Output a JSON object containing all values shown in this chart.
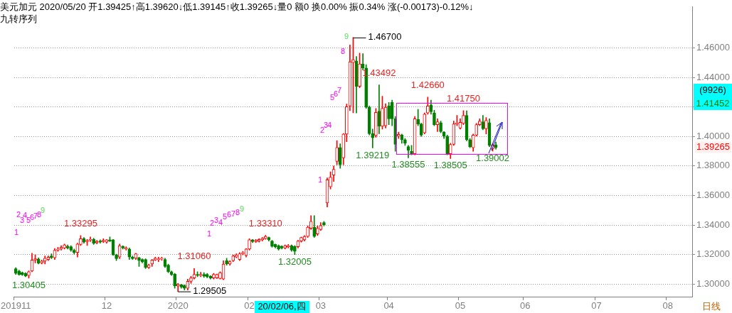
{
  "chart_data": {
    "type": "candlestick",
    "title": "美元加元 2020/05/20 开1.39425↑高1.39620↓低1.39145↑收1.39265↓量0 额0 换0.00% 振0.34% 涨(-0.00173)-0.12%↓",
    "subtitle": "九转序列",
    "categories": [
      "201911",
      null,
      null,
      null,
      null,
      null,
      null,
      null,
      null,
      null,
      null,
      null,
      null,
      null,
      null,
      null,
      null,
      null,
      null,
      null,
      null,
      null,
      null,
      null,
      null,
      null,
      null,
      null,
      "12",
      null,
      null,
      null,
      null,
      null,
      null,
      null,
      null,
      null,
      null,
      null,
      null,
      null,
      null,
      null,
      null,
      null,
      null,
      null,
      null,
      null,
      "2020",
      null,
      null,
      null,
      null,
      null,
      null,
      null,
      null,
      null,
      null,
      null,
      null,
      null,
      null,
      null,
      null,
      null,
      null,
      null,
      null,
      null,
      "02",
      null,
      null,
      null,
      null,
      null,
      null,
      null,
      null,
      null,
      null,
      null,
      null,
      null,
      null,
      null,
      null,
      null,
      null,
      null,
      null,
      null,
      "03",
      null,
      null,
      null,
      null,
      null,
      null,
      null,
      null,
      null,
      null,
      null,
      null,
      null,
      null,
      null,
      null,
      null,
      null,
      null,
      null,
      "04",
      null,
      null,
      null,
      null,
      null,
      null,
      null,
      null,
      null,
      null,
      null,
      null,
      null,
      null,
      null,
      null,
      null,
      null,
      null,
      null,
      null,
      "05",
      null,
      null,
      null,
      null,
      null,
      null,
      null,
      null,
      null,
      null,
      null,
      null,
      null,
      null,
      null,
      null,
      null,
      null,
      null,
      "06",
      null,
      null,
      null,
      null,
      null,
      null,
      null,
      null,
      null,
      null,
      null,
      null,
      null,
      null,
      null,
      null,
      null,
      null,
      null,
      null,
      null,
      "07",
      null,
      null,
      null,
      null,
      null,
      null,
      null,
      null,
      null,
      null,
      null,
      null,
      null,
      null,
      null,
      null,
      null,
      null,
      null,
      null,
      null,
      "08",
      null,
      null,
      null,
      null,
      null,
      null,
      null
    ],
    "ohlc": [
      [
        1.3105,
        1.3112,
        1.3066,
        1.3073
      ],
      [
        1.3089,
        1.3095,
        1.306,
        1.3066
      ],
      [
        1.3078,
        1.3083,
        1.3058,
        1.3063
      ],
      [
        1.3073,
        1.3078,
        1.305,
        1.3055
      ],
      [
        1.3058,
        1.309,
        1.30405,
        1.3084
      ],
      [
        1.3089,
        1.3209,
        1.3084,
        1.3163
      ],
      [
        1.3163,
        1.3198,
        1.3144,
        1.3172
      ],
      [
        1.317,
        1.3178,
        1.3136,
        1.3141
      ],
      [
        1.3144,
        1.3163,
        1.3136,
        1.3156
      ],
      [
        1.3156,
        1.3191,
        1.3136,
        1.3175
      ],
      [
        1.3167,
        1.3191,
        1.3159,
        1.3183
      ],
      [
        1.3191,
        1.3206,
        1.3172,
        1.3178
      ],
      [
        1.3178,
        1.3241,
        1.3167,
        1.323
      ],
      [
        1.323,
        1.325,
        1.3222,
        1.3238
      ],
      [
        1.3238,
        1.3261,
        1.323,
        1.325
      ],
      [
        1.3245,
        1.3272,
        1.3238,
        1.3266
      ],
      [
        1.3256,
        1.3266,
        1.3238,
        1.3245
      ],
      [
        1.3253,
        1.3261,
        1.3222,
        1.323
      ],
      [
        1.323,
        1.3238,
        1.3203,
        1.3214
      ],
      [
        1.3214,
        1.3277,
        1.3183,
        1.3272
      ],
      [
        1.3269,
        1.33295,
        1.3261,
        1.3308
      ],
      [
        1.3308,
        1.3316,
        1.3277,
        1.3284
      ],
      [
        1.3288,
        1.3303,
        1.3261,
        1.3297
      ],
      [
        1.3297,
        1.3319,
        1.3288,
        1.3303
      ],
      [
        1.3303,
        1.3311,
        1.3269,
        1.3277
      ],
      [
        1.3281,
        1.3297,
        1.3272,
        1.3289
      ],
      [
        1.3292,
        1.33,
        1.3277,
        1.3284
      ],
      [
        1.3288,
        1.3308,
        1.3281,
        1.3297
      ],
      [
        1.3284,
        1.3303,
        1.3277,
        1.33
      ],
      [
        1.33,
        1.3319,
        1.3288,
        1.3292
      ],
      [
        1.33,
        1.3303,
        1.3194,
        1.3198
      ],
      [
        1.3198,
        1.3203,
        1.3159,
        1.3172
      ],
      [
        1.3183,
        1.3272,
        1.3172,
        1.3261
      ],
      [
        1.3256,
        1.3261,
        1.3238,
        1.3245
      ],
      [
        1.3238,
        1.3253,
        1.323,
        1.3245
      ],
      [
        1.3238,
        1.3245,
        1.3167,
        1.3183
      ],
      [
        1.3183,
        1.3191,
        1.3167,
        1.3172
      ],
      [
        1.3175,
        1.3209,
        1.3167,
        1.3206
      ],
      [
        1.3178,
        1.3183,
        1.312,
        1.3159
      ],
      [
        1.3167,
        1.3172,
        1.3144,
        1.3152
      ],
      [
        1.3167,
        1.3172,
        1.3105,
        1.3113
      ],
      [
        1.3113,
        1.3136,
        1.3105,
        1.3128
      ],
      [
        1.3136,
        1.3167,
        1.312,
        1.3163
      ],
      [
        1.3163,
        1.3183,
        1.3159,
        1.3175
      ],
      [
        1.3167,
        1.3183,
        1.3152,
        1.3172
      ],
      [
        1.317,
        1.3183,
        1.316,
        1.3175
      ],
      [
        1.3167,
        1.3175,
        1.3113,
        1.312
      ],
      [
        1.3128,
        1.3136,
        1.3078,
        1.3084
      ],
      [
        1.3084,
        1.3089,
        1.3058,
        1.3066
      ],
      [
        1.3069,
        1.3073,
        1.2972,
        1.2988
      ],
      [
        1.2988,
        1.3005,
        1.29505,
        1.3
      ],
      [
        1.2995,
        1.3,
        1.2972,
        1.298
      ],
      [
        1.2991,
        1.2995,
        1.296,
        1.2972
      ],
      [
        1.2972,
        1.3034,
        1.296,
        1.3019
      ],
      [
        1.3019,
        1.3053,
        1.3005,
        1.3042
      ],
      [
        1.3042,
        1.3106,
        1.3034,
        1.3066
      ],
      [
        1.3066,
        1.3084,
        1.305,
        1.3058
      ],
      [
        1.3058,
        1.308,
        1.305,
        1.3066
      ],
      [
        1.3066,
        1.3078,
        1.3045,
        1.3053
      ],
      [
        1.3066,
        1.3073,
        1.3042,
        1.305
      ],
      [
        1.3053,
        1.3058,
        1.3034,
        1.3042
      ],
      [
        1.3042,
        1.3073,
        1.3034,
        1.3066
      ],
      [
        1.3042,
        1.3069,
        1.3038,
        1.3066
      ],
      [
        1.3038,
        1.3084,
        1.3034,
        1.3078
      ],
      [
        1.3034,
        1.3159,
        1.303,
        1.3136
      ],
      [
        1.3159,
        1.3175,
        1.3128,
        1.3136
      ],
      [
        1.3136,
        1.3159,
        1.3128,
        1.3152
      ],
      [
        1.3159,
        1.3198,
        1.3152,
        1.3191
      ],
      [
        1.3183,
        1.3206,
        1.3178,
        1.3198
      ],
      [
        1.3167,
        1.3214,
        1.3159,
        1.3206
      ],
      [
        1.3206,
        1.3222,
        1.3198,
        1.3214
      ],
      [
        1.3194,
        1.3241,
        1.3183,
        1.3238
      ],
      [
        1.3238,
        1.3308,
        1.323,
        1.33
      ],
      [
        1.33,
        1.3303,
        1.3281,
        1.3288
      ],
      [
        1.3288,
        1.3303,
        1.3281,
        1.3297
      ],
      [
        1.3292,
        1.3308,
        1.3284,
        1.3303
      ],
      [
        1.33,
        1.3316,
        1.3292,
        1.3311
      ],
      [
        1.3308,
        1.3331,
        1.3303,
        1.3323
      ],
      [
        1.3316,
        1.3319,
        1.3292,
        1.33
      ],
      [
        1.3292,
        1.3297,
        1.325,
        1.3256
      ],
      [
        1.3269,
        1.3272,
        1.3245,
        1.3253
      ],
      [
        1.3261,
        1.3266,
        1.323,
        1.3238
      ],
      [
        1.3256,
        1.3261,
        1.3238,
        1.3245
      ],
      [
        1.3245,
        1.3266,
        1.3238,
        1.3261
      ],
      [
        1.3253,
        1.3269,
        1.3245,
        1.3261
      ],
      [
        1.3261,
        1.3266,
        1.3222,
        1.323
      ],
      [
        1.3256,
        1.3261,
        1.32005,
        1.3222
      ],
      [
        1.3253,
        1.3297,
        1.3245,
        1.3292
      ],
      [
        1.3292,
        1.3319,
        1.3284,
        1.3316
      ],
      [
        1.33,
        1.3329,
        1.3292,
        1.3323
      ],
      [
        1.3323,
        1.3394,
        1.3316,
        1.3386
      ],
      [
        1.3378,
        1.3464,
        1.337,
        1.3425
      ],
      [
        1.3386,
        1.3464,
        1.3316,
        1.3323
      ],
      [
        1.3339,
        1.3394,
        1.3329,
        1.3378
      ],
      [
        1.337,
        1.3417,
        1.3363,
        1.3397
      ],
      [
        1.3417,
        1.3425,
        1.3394,
        1.3402
      ],
      [
        1.355,
        1.372,
        1.3522,
        1.3706
      ],
      [
        1.3659,
        1.3761,
        1.3644,
        1.3725
      ],
      [
        1.3738,
        1.38,
        1.3695,
        1.3777
      ],
      [
        1.3831,
        1.3972,
        1.3808,
        1.3925
      ],
      [
        1.3925,
        1.395,
        1.3784,
        1.3808
      ],
      [
        1.3855,
        1.402,
        1.3808,
        1.4016
      ],
      [
        1.4016,
        1.422,
        1.3964,
        1.4202
      ],
      [
        1.4206,
        1.462,
        1.4175,
        1.4506
      ],
      [
        1.45,
        1.467,
        1.416,
        1.452
      ],
      [
        1.4511,
        1.4542,
        1.4159,
        1.4339
      ],
      [
        1.4339,
        1.4564,
        1.433,
        1.4491
      ],
      [
        1.4491,
        1.4561,
        1.445,
        1.4464
      ],
      [
        1.4464,
        1.4486,
        1.419,
        1.4198
      ],
      [
        1.4198,
        1.4206,
        1.401,
        1.4019
      ],
      [
        1.4019,
        1.405,
        1.39219,
        1.3991
      ],
      [
        1.4006,
        1.419,
        1.3995,
        1.4163
      ],
      [
        1.4172,
        1.43492,
        1.4019,
        1.4069
      ],
      [
        1.4069,
        1.4272,
        1.405,
        1.4191
      ],
      [
        1.4072,
        1.4222,
        1.4057,
        1.4198
      ],
      [
        1.4206,
        1.423,
        1.408,
        1.412
      ],
      [
        1.423,
        1.4246,
        1.4072,
        1.412
      ],
      [
        1.412,
        1.4135,
        1.3899,
        1.3946
      ],
      [
        1.4002,
        1.403,
        1.3986,
        1.4014
      ],
      [
        1.4009,
        1.4017,
        1.3954,
        1.3978
      ],
      [
        1.3978,
        1.3986,
        1.3939,
        1.3954
      ],
      [
        1.3931,
        1.3939,
        1.38555,
        1.3907
      ],
      [
        1.3899,
        1.3939,
        1.3875,
        1.3883
      ],
      [
        1.3883,
        1.4135,
        1.3875,
        1.412
      ],
      [
        1.4115,
        1.4183,
        1.4072,
        1.4085
      ],
      [
        1.4085,
        1.409,
        1.4,
        1.4009
      ],
      [
        1.4025,
        1.4159,
        1.4017,
        1.4151
      ],
      [
        1.4159,
        1.4266,
        1.4151,
        1.4206
      ],
      [
        1.4214,
        1.4246,
        1.4151,
        1.4167
      ],
      [
        1.4159,
        1.4177,
        1.4072,
        1.408
      ],
      [
        1.408,
        1.412,
        1.4033,
        1.4099
      ],
      [
        1.4093,
        1.4104,
        1.4025,
        1.4033
      ],
      [
        1.403,
        1.4033,
        1.3986,
        1.4002
      ],
      [
        1.4002,
        1.4009,
        1.3875,
        1.3883
      ],
      [
        1.3883,
        1.3954,
        1.38505,
        1.3946
      ],
      [
        1.3946,
        1.4104,
        1.3939,
        1.4085
      ],
      [
        1.4085,
        1.4143,
        1.4072,
        1.4091
      ],
      [
        1.4057,
        1.412,
        1.405,
        1.4096
      ],
      [
        1.4088,
        1.4175,
        1.408,
        1.4143
      ],
      [
        1.4143,
        1.4174,
        1.397,
        1.3978
      ],
      [
        1.3978,
        1.3986,
        1.3923,
        1.3931
      ],
      [
        1.3923,
        1.4017,
        1.3899,
        1.4009
      ],
      [
        1.4009,
        1.4088,
        1.4002,
        1.408
      ],
      [
        1.408,
        1.412,
        1.4072,
        1.4104
      ],
      [
        1.4099,
        1.4143,
        1.4045,
        1.4052
      ],
      [
        1.4052,
        1.4128,
        1.4017,
        1.4109
      ],
      [
        1.4093,
        1.412,
        1.3931,
        1.3939
      ],
      [
        1.3915,
        1.395,
        1.39002,
        1.3942
      ],
      [
        1.39425,
        1.3962,
        1.39145,
        1.39265
      ],
      null,
      null,
      null,
      null,
      null,
      null,
      null,
      null,
      null,
      null,
      null,
      null,
      null,
      null,
      null,
      null,
      null,
      null,
      null,
      null,
      null,
      null,
      null,
      null,
      null,
      null,
      null,
      null,
      null,
      null,
      null,
      null,
      null,
      null,
      null,
      null,
      null,
      null,
      null,
      null,
      null,
      null,
      null,
      null,
      null,
      null,
      null,
      null,
      null,
      null,
      null,
      null,
      null,
      null,
      null,
      null,
      null,
      null,
      null,
      null
    ],
    "ylim": [
      1.2915,
      1.4877
    ],
    "yticks": [
      {
        "value": 1.3,
        "label": "1.30000"
      },
      {
        "value": 1.32,
        "label": "1.32000"
      },
      {
        "value": 1.34,
        "label": "1.34000"
      },
      {
        "value": 1.36,
        "label": "1.36000"
      },
      {
        "value": 1.38,
        "label": "1.38000"
      },
      {
        "value": 1.4,
        "label": "1.40000"
      },
      {
        "value": 1.42,
        "label": null
      },
      {
        "value": 1.44,
        "label": "1.44000"
      },
      {
        "value": 1.46,
        "label": "1.46000"
      }
    ],
    "grid": "y",
    "annotations": [
      {
        "text": "1.43492",
        "y": 1.43492
      },
      {
        "text": "1.42660",
        "y": 1.4266
      },
      {
        "text": "1.41750",
        "y": 1.4175
      },
      {
        "text": "1.39219",
        "y": 1.39219
      },
      {
        "text": "1.38555",
        "y": 1.38555
      },
      {
        "text": "1.38505",
        "y": 1.38505
      },
      {
        "text": "1.39002",
        "y": 1.39002
      },
      {
        "text": "1.33295",
        "y": 1.33295
      },
      {
        "text": "1.33310",
        "y": 1.3331
      },
      {
        "text": "1.31060",
        "y": 1.3106
      },
      {
        "text": "1.32005",
        "y": 1.32005
      },
      {
        "text": "1.30405",
        "y": 1.30405
      },
      "1",
      "2",
      "3",
      "4",
      "5",
      "6",
      "7",
      "8",
      "9",
      "1",
      "2",
      "3",
      "4",
      "5",
      "6",
      "7",
      "8",
      "9",
      "1",
      "2",
      "3",
      "4",
      "5",
      "6",
      "7",
      "8",
      "9",
      "20/02/06,四",
      "(9926)",
      "1.41452",
      "日线",
      "1.46700",
      "1.29505",
      "1.39265"
    ]
  }
}
